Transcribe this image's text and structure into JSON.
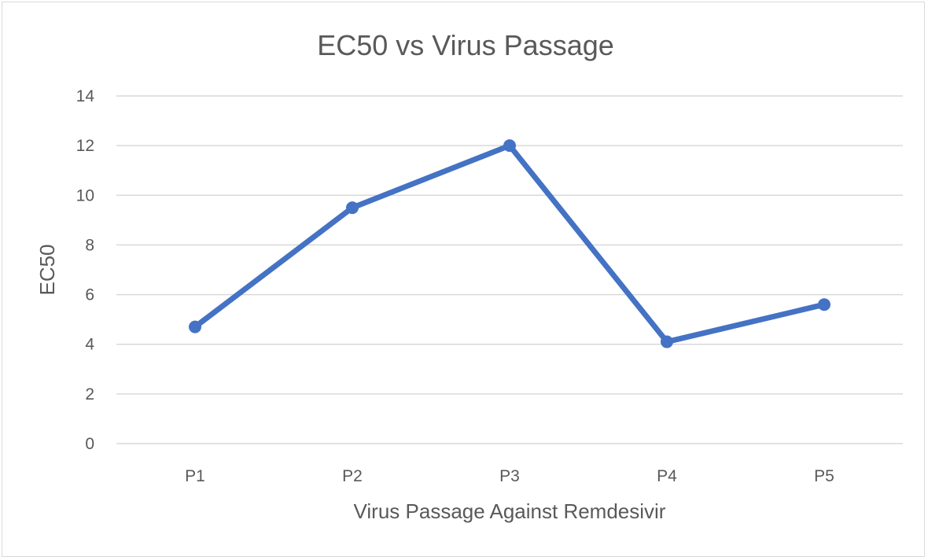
{
  "chart_data": {
    "type": "line",
    "title": "EC50 vs Virus Passage",
    "xlabel": "Virus Passage Against Remdesivir",
    "ylabel": "EC50",
    "categories": [
      "P1",
      "P2",
      "P3",
      "P4",
      "P5"
    ],
    "series": [
      {
        "values": [
          4.7,
          9.5,
          12.0,
          4.1,
          5.6
        ]
      }
    ],
    "ylim": [
      0,
      14
    ],
    "yticks": [
      "0",
      "2",
      "4",
      "6",
      "8",
      "10",
      "12",
      "14"
    ],
    "grid": true,
    "legend": "none",
    "colors": {
      "series": "#4472c4",
      "grid": "#d9d9d9",
      "text": "#595959"
    }
  }
}
